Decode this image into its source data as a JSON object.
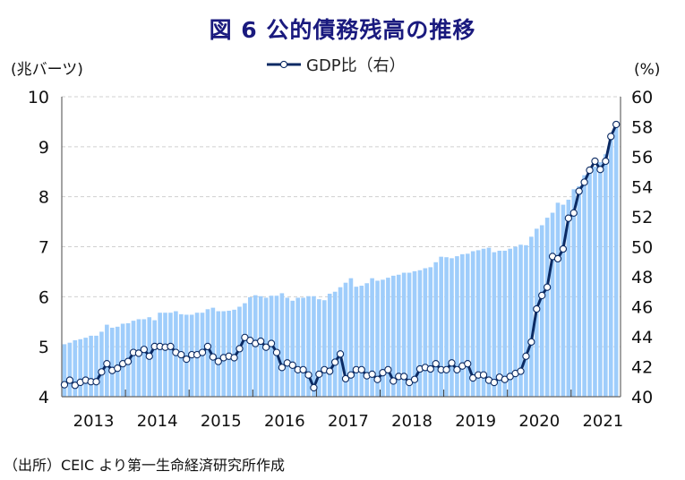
{
  "title": "図 6  公的債務残高の推移",
  "source": "（出所）CEIC より第一生命経済研究所作成",
  "chart_data": {
    "type": "bar+line",
    "title": "図 6  公的債務残高の推移",
    "frequency": "monthly",
    "start": "2013-01",
    "end": "2021-09",
    "x_tick_labels": [
      "2013",
      "2014",
      "2015",
      "2016",
      "2017",
      "2018",
      "2019",
      "2020",
      "2021"
    ],
    "left_axis": {
      "label": "(兆バーツ)",
      "range": [
        4,
        10
      ],
      "ticks": [
        4,
        5,
        6,
        7,
        8,
        9,
        10
      ]
    },
    "right_axis": {
      "label": "(%)",
      "range": [
        40,
        60
      ],
      "ticks": [
        40,
        42,
        44,
        46,
        48,
        50,
        52,
        54,
        56,
        58,
        60
      ]
    },
    "grid": "horizontal dashed",
    "legend": {
      "position": "top-center",
      "entries": [
        "GDP比（右）"
      ]
    },
    "colors": {
      "bars": "#9fcdfb",
      "line": "#0b2a63",
      "marker_fill": "#ffffff",
      "title": "#1a1a7e"
    },
    "series": [
      {
        "axis": "left",
        "kind": "bar",
        "values": [
          5.05,
          5.08,
          5.13,
          5.15,
          5.18,
          5.22,
          5.22,
          5.3,
          5.44,
          5.38,
          5.4,
          5.46,
          5.47,
          5.52,
          5.55,
          5.55,
          5.59,
          5.53,
          5.68,
          5.68,
          5.68,
          5.71,
          5.65,
          5.64,
          5.64,
          5.68,
          5.68,
          5.75,
          5.78,
          5.71,
          5.71,
          5.72,
          5.74,
          5.8,
          5.87,
          5.99,
          6.03,
          6.01,
          5.98,
          6.02,
          6.02,
          6.07,
          5.98,
          5.92,
          5.98,
          5.98,
          6.01,
          6.01,
          5.95,
          5.93,
          6.06,
          6.1,
          6.19,
          6.28,
          6.37,
          6.2,
          6.22,
          6.27,
          6.37,
          6.32,
          6.34,
          6.38,
          6.42,
          6.44,
          6.48,
          6.48,
          6.51,
          6.53,
          6.57,
          6.59,
          6.69,
          6.8,
          6.79,
          6.77,
          6.81,
          6.85,
          6.86,
          6.91,
          6.93,
          6.96,
          6.98,
          6.89,
          6.92,
          6.92,
          6.96,
          7.0,
          7.04,
          7.03,
          7.2,
          7.36,
          7.43,
          7.58,
          7.68,
          7.88,
          7.84,
          7.94,
          8.15,
          8.21,
          8.43,
          8.5,
          8.6,
          8.69,
          8.85,
          9.17,
          9.44
        ]
      },
      {
        "name": "GDP比（右）",
        "axis": "right",
        "kind": "line",
        "values": [
          40.8,
          41.1,
          40.76,
          40.96,
          41.1,
          41.0,
          41.0,
          41.65,
          42.2,
          41.75,
          41.9,
          42.2,
          42.35,
          42.95,
          42.9,
          43.15,
          42.7,
          43.35,
          43.35,
          43.3,
          43.35,
          42.95,
          42.8,
          42.5,
          42.8,
          42.8,
          42.95,
          43.35,
          42.65,
          42.35,
          42.6,
          42.7,
          42.6,
          43.2,
          43.95,
          43.75,
          43.55,
          43.7,
          43.3,
          43.55,
          42.95,
          41.95,
          42.25,
          42.1,
          41.8,
          41.8,
          41.45,
          40.6,
          41.5,
          41.8,
          41.7,
          42.3,
          42.85,
          41.2,
          41.45,
          41.8,
          41.8,
          41.4,
          41.5,
          41.15,
          41.6,
          41.8,
          41.05,
          41.35,
          41.35,
          40.95,
          41.15,
          41.85,
          41.95,
          41.85,
          42.2,
          41.8,
          41.8,
          42.25,
          41.8,
          42.05,
          42.2,
          41.25,
          41.45,
          41.45,
          41.1,
          40.95,
          41.3,
          41.15,
          41.35,
          41.55,
          41.7,
          42.7,
          43.65,
          45.85,
          46.75,
          47.3,
          49.35,
          49.2,
          49.85,
          51.9,
          52.25,
          53.7,
          54.3,
          55.1,
          55.7,
          55.15,
          55.7,
          57.35,
          58.15
        ]
      }
    ]
  }
}
